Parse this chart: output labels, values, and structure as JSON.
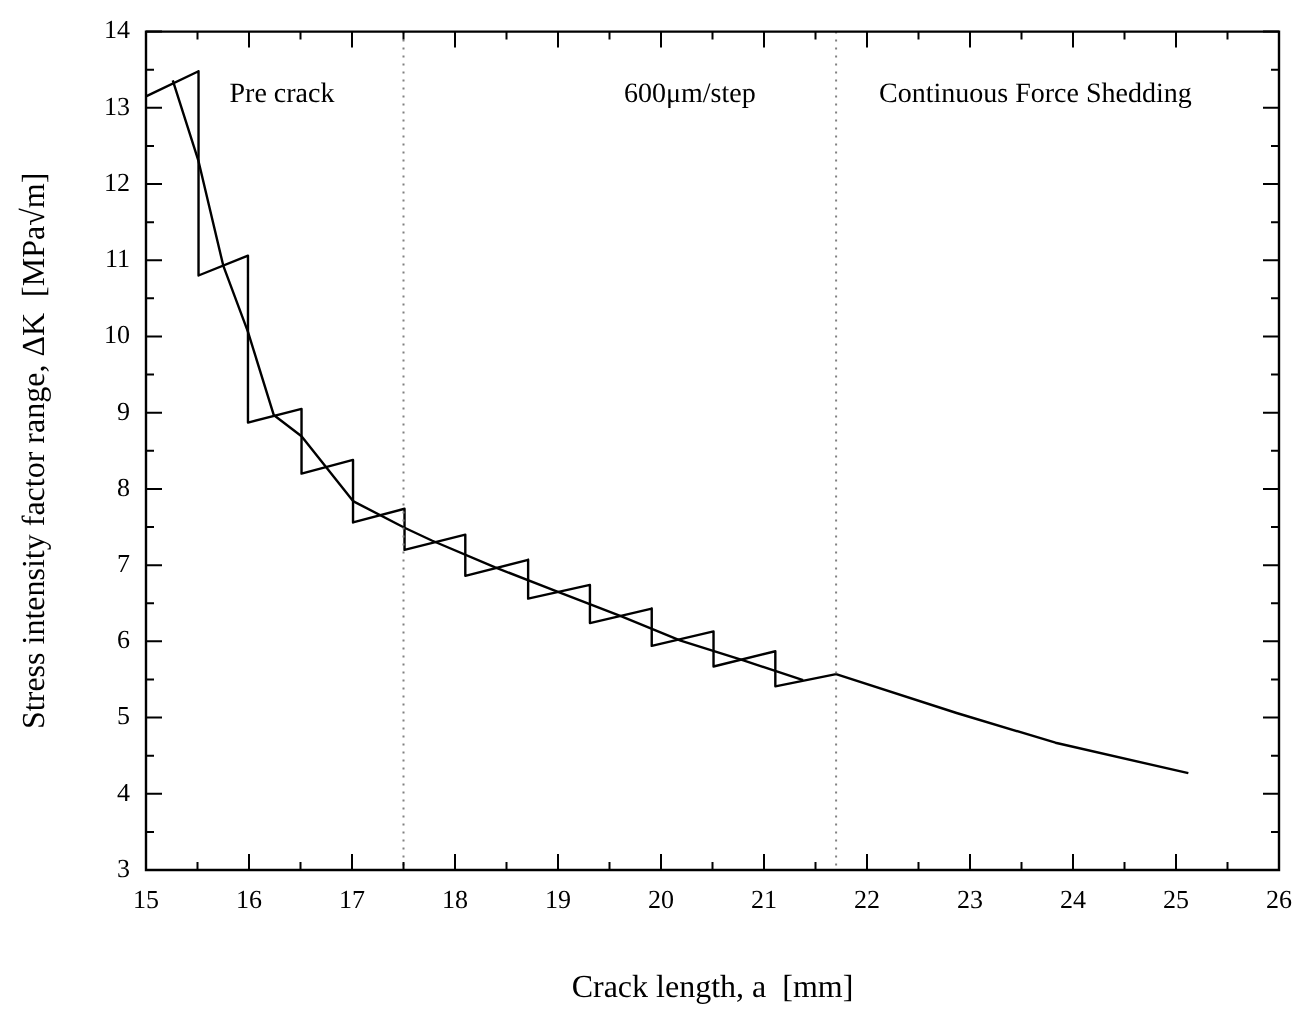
{
  "chart_data": {
    "type": "line",
    "xlabel": "Crack length, a  [mm]",
    "ylabel": "Stress intensity factor range, ΔK  [MPa√m]",
    "xlim": [
      15,
      26
    ],
    "ylim": [
      3,
      14
    ],
    "xticks": [
      15,
      {
        "value": 15.5,
        "label": null
      },
      16,
      {
        "value": 16.5,
        "label": null
      },
      17,
      {
        "value": 17.5,
        "label": null
      },
      18,
      {
        "value": 18.5,
        "label": null
      },
      19,
      {
        "value": 19.5,
        "label": null
      },
      20,
      {
        "value": 20.5,
        "label": null
      },
      21,
      {
        "value": 21.5,
        "label": null
      },
      22,
      {
        "value": 22.5,
        "label": null
      },
      23,
      {
        "value": 23.5,
        "label": null
      },
      24,
      {
        "value": 24.5,
        "label": null
      },
      25,
      {
        "value": 25.5,
        "label": null
      },
      26
    ],
    "yticks": [
      3,
      {
        "value": 3.5,
        "label": null
      },
      4,
      {
        "value": 4.5,
        "label": null
      },
      5,
      {
        "value": 5.5,
        "label": null
      },
      6,
      {
        "value": 6.5,
        "label": null
      },
      7,
      {
        "value": 7.5,
        "label": null
      },
      8,
      {
        "value": 8.5,
        "label": null
      },
      9,
      {
        "value": 9.5,
        "label": null
      },
      10,
      {
        "value": 10.5,
        "label": null
      },
      11,
      {
        "value": 11.5,
        "label": null
      },
      12,
      {
        "value": 12.5,
        "label": null
      },
      13,
      {
        "value": 13.5,
        "label": null
      },
      14
    ],
    "marker": "none",
    "line_style": "solid",
    "series": [
      {
        "color": "#000000",
        "x": [
          15,
          15.51,
          15.51,
          15.99,
          15.99,
          16.51,
          16.51,
          17.01,
          17.01,
          17.51,
          17.51,
          18.1,
          18.1,
          18.71,
          18.71,
          19.31,
          19.31,
          19.91,
          19.91,
          20.51,
          20.51,
          21.11,
          21.11,
          21.7,
          22.87,
          23.83,
          25.12
        ],
        "values": [
          13.15,
          13.48,
          10.8,
          11.06,
          8.87,
          9.05,
          8.2,
          8.38,
          7.56,
          7.74,
          7.2,
          7.4,
          6.86,
          7.07,
          6.56,
          6.74,
          6.24,
          6.43,
          5.94,
          6.13,
          5.67,
          5.87,
          5.41,
          5.57,
          5.06,
          4.67,
          4.27
        ]
      },
      {
        "color": "#000000",
        "x": [
          15.26,
          15.51,
          15.75,
          15.99,
          16.24,
          16.51,
          17.01,
          17.51,
          17.78,
          18.39,
          19.0,
          19.61,
          20.19,
          20.8,
          21.38
        ],
        "values": [
          13.36,
          12.3,
          10.93,
          10.06,
          8.97,
          8.69,
          7.84,
          7.49,
          7.32,
          6.97,
          6.65,
          6.33,
          6.01,
          5.75,
          5.49
        ]
      }
    ],
    "ref_lines": [
      {
        "axis": "x",
        "value": 17.5,
        "color": "#808080",
        "line_style": "dotted"
      },
      {
        "axis": "x",
        "value": 21.7,
        "color": "#808080",
        "line_style": "dotted"
      }
    ],
    "annotations": [
      "Pre crack",
      "600μm/step",
      "Continuous Force Shedding"
    ]
  }
}
